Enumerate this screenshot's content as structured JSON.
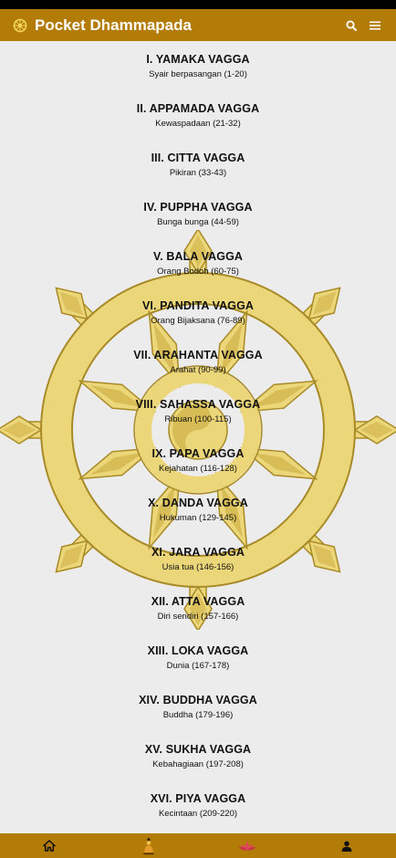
{
  "app": {
    "title": "Pocket Dhammapada"
  },
  "icons": {
    "logo": "dharma-wheel-icon",
    "search": "search-icon",
    "menu": "menu-icon"
  },
  "colors": {
    "brand": "#b37c06",
    "wheel": "#ecd67a",
    "background": "#ececec"
  },
  "vaggas": [
    {
      "name": "I. YAMAKA VAGGA",
      "subtitle": "Syair berpasangan (1-20)"
    },
    {
      "name": "II. APPAMADA VAGGA",
      "subtitle": "Kewaspadaan (21-32)"
    },
    {
      "name": "III. CITTA VAGGA",
      "subtitle": "Pikiran (33-43)"
    },
    {
      "name": "IV. PUPPHA VAGGA",
      "subtitle": "Bunga bunga (44-59)"
    },
    {
      "name": "V. BALA VAGGA",
      "subtitle": "Orang Bodoh (60-75)"
    },
    {
      "name": "VI. PANDITA VAGGA",
      "subtitle": "Orang Bijaksana (76-89)"
    },
    {
      "name": "VII. ARAHANTA VAGGA",
      "subtitle": "Arahat (90-99)"
    },
    {
      "name": "VIII. SAHASSA VAGGA",
      "subtitle": "Ribuan (100-115)"
    },
    {
      "name": "IX. PAPA VAGGA",
      "subtitle": "Kejahatan (116-128)"
    },
    {
      "name": "X. DANDA VAGGA",
      "subtitle": "Hukuman (129-145)"
    },
    {
      "name": "XI. JARA VAGGA",
      "subtitle": "Usia tua (146-156)"
    },
    {
      "name": "XII. ATTA VAGGA",
      "subtitle": "Diri sendiri (157-166)"
    },
    {
      "name": "XIII. LOKA VAGGA",
      "subtitle": "Dunia (167-178)"
    },
    {
      "name": "XIV. BUDDHA VAGGA",
      "subtitle": "Buddha (179-196)"
    },
    {
      "name": "XV. SUKHA VAGGA",
      "subtitle": "Kebahagiaan (197-208)"
    },
    {
      "name": "XVI. PIYA VAGGA",
      "subtitle": "Kecintaan (209-220)"
    }
  ],
  "bottom_nav": [
    {
      "icon": "home-icon"
    },
    {
      "icon": "buddha-icon"
    },
    {
      "icon": "lotus-icon"
    },
    {
      "icon": "profile-icon"
    }
  ]
}
